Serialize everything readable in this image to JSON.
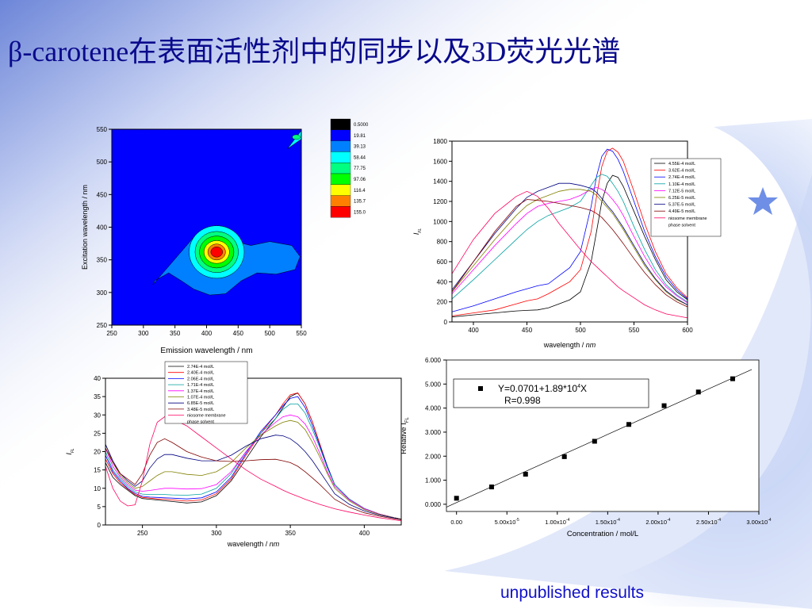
{
  "slide": {
    "title": "β-carotene在表面活性剂中的同步以及3D荧光光谱",
    "footnote": "unpublished results"
  },
  "colors": {
    "title": "#0a0a8c",
    "footnote": "#1010c8",
    "background_glow": "#c9d6f6",
    "star": "#6f8fe6"
  },
  "chart_data": [
    {
      "id": "contour-3d",
      "type": "heatmap",
      "subtype": "contour",
      "xlabel": "Emission wavelength / nm",
      "ylabel": "Excitation wavelength / nm",
      "xlim": [
        250,
        550
      ],
      "ylim": [
        250,
        550
      ],
      "xticks": [
        250,
        300,
        350,
        400,
        450,
        500,
        550
      ],
      "yticks": [
        250,
        300,
        350,
        400,
        450,
        500,
        550
      ],
      "colorbar": {
        "levels": [
          "0.5000",
          "19.81",
          "39.13",
          "58.44",
          "77.75",
          "97.06",
          "116.4",
          "135.7",
          "155.0"
        ],
        "colors": [
          "#000000",
          "#0000ff",
          "#0080ff",
          "#00ffff",
          "#00ff80",
          "#00ff00",
          "#ffff00",
          "#ff8000",
          "#ff0000"
        ]
      },
      "peak": {
        "emission": 412,
        "excitation": 365
      }
    },
    {
      "id": "synchronous-spectra",
      "type": "line",
      "xlabel": "wavelength / nm",
      "ylabel": "I_FL",
      "xlim": [
        380,
        600
      ],
      "ylim": [
        0,
        1800
      ],
      "xticks": [
        400,
        450,
        500,
        550,
        600
      ],
      "yticks": [
        0,
        200,
        400,
        600,
        800,
        1000,
        1200,
        1400,
        1600,
        1800
      ],
      "x": [
        380,
        400,
        420,
        440,
        450,
        460,
        470,
        480,
        490,
        500,
        510,
        515,
        520,
        525,
        530,
        535,
        540,
        550,
        560,
        570,
        580,
        590,
        600
      ],
      "series": [
        {
          "name": "4.55E-4 mol/L",
          "color": "#000000",
          "values": [
            50,
            70,
            90,
            110,
            115,
            120,
            140,
            180,
            220,
            300,
            600,
            900,
            1200,
            1380,
            1460,
            1440,
            1350,
            1100,
            850,
            620,
            420,
            300,
            220
          ]
        },
        {
          "name": "3.62E-4 mol/L",
          "color": "#ff0000",
          "values": [
            60,
            90,
            120,
            180,
            210,
            230,
            280,
            340,
            400,
            520,
            900,
            1250,
            1550,
            1700,
            1730,
            1690,
            1600,
            1300,
            980,
            700,
            480,
            340,
            240
          ]
        },
        {
          "name": "2.74E-4 mol/L",
          "color": "#0000ff",
          "values": [
            100,
            160,
            230,
            300,
            330,
            360,
            380,
            460,
            540,
            700,
            1150,
            1450,
            1650,
            1720,
            1700,
            1620,
            1500,
            1200,
            900,
            650,
            450,
            320,
            230
          ]
        },
        {
          "name": "1.10E-4 mol/L",
          "color": "#00a0a0",
          "values": [
            230,
            420,
            620,
            820,
            920,
            1000,
            1060,
            1100,
            1140,
            1200,
            1360,
            1440,
            1470,
            1450,
            1380,
            1300,
            1200,
            950,
            720,
            520,
            370,
            270,
            200
          ]
        },
        {
          "name": "7.12E-5 mol/L",
          "color": "#ff00ff",
          "values": [
            280,
            520,
            760,
            980,
            1080,
            1150,
            1180,
            1200,
            1220,
            1260,
            1320,
            1340,
            1320,
            1280,
            1220,
            1150,
            1060,
            850,
            650,
            480,
            350,
            260,
            190
          ]
        },
        {
          "name": "6.25E-5 mol/L",
          "color": "#808000",
          "values": [
            300,
            560,
            820,
            1060,
            1160,
            1220,
            1260,
            1300,
            1320,
            1320,
            1300,
            1260,
            1200,
            1140,
            1080,
            1000,
            920,
            740,
            560,
            420,
            300,
            220,
            170
          ]
        },
        {
          "name": "5.37E-5 mol/L",
          "color": "#000080",
          "values": [
            320,
            600,
            880,
            1130,
            1240,
            1300,
            1340,
            1380,
            1380,
            1360,
            1330,
            1290,
            1230,
            1160,
            1100,
            1020,
            940,
            760,
            580,
            430,
            310,
            230,
            170
          ]
        },
        {
          "name": "4.49E-5 mol/L",
          "color": "#800000",
          "values": [
            300,
            600,
            900,
            1150,
            1220,
            1210,
            1200,
            1180,
            1160,
            1140,
            1110,
            1080,
            1040,
            980,
            920,
            850,
            780,
            630,
            490,
            370,
            270,
            200,
            150
          ]
        },
        {
          "name": "niosome membrane phase solvent",
          "color": "#ff0060",
          "values": [
            480,
            820,
            1080,
            1250,
            1300,
            1250,
            1130,
            980,
            850,
            720,
            600,
            550,
            500,
            450,
            400,
            350,
            310,
            240,
            170,
            120,
            80,
            60,
            40
          ]
        }
      ]
    },
    {
      "id": "synchronous-spectra-low",
      "type": "line",
      "xlabel": "wavelength / nm",
      "ylabel": "I_FL",
      "xlim": [
        225,
        425
      ],
      "ylim": [
        0,
        40
      ],
      "xticks": [
        250,
        300,
        350,
        400
      ],
      "yticks": [
        0,
        5,
        10,
        15,
        20,
        25,
        30,
        35,
        40
      ],
      "x": [
        225,
        230,
        235,
        240,
        245,
        250,
        255,
        260,
        265,
        270,
        280,
        290,
        300,
        310,
        320,
        330,
        340,
        345,
        350,
        355,
        360,
        365,
        370,
        375,
        380,
        390,
        400,
        410,
        420,
        425
      ],
      "series": [
        {
          "name": "2.74E-4 mol/L",
          "color": "#000000",
          "values": [
            17,
            13,
            11,
            9.5,
            8,
            7.2,
            7,
            6.8,
            6.6,
            6.4,
            6,
            6.3,
            8,
            12,
            18,
            24,
            29,
            32,
            35,
            36,
            33,
            28,
            22,
            16,
            11,
            7,
            4.5,
            3,
            2,
            1.6
          ]
        },
        {
          "name": "2.40E-4 mol/L",
          "color": "#ff0000",
          "values": [
            18,
            14,
            11.5,
            9.8,
            8.3,
            7.5,
            7.3,
            7.1,
            7,
            6.8,
            6.5,
            6.8,
            8.5,
            12.5,
            19,
            25,
            30,
            33,
            35.5,
            36,
            33,
            28,
            22,
            16,
            11,
            7,
            4.5,
            3,
            2,
            1.6
          ]
        },
        {
          "name": "2.06E-4 mol/L",
          "color": "#0000ff",
          "values": [
            19,
            14.5,
            12,
            10,
            8.6,
            7.8,
            7.6,
            7.5,
            7.4,
            7.3,
            7.1,
            7.4,
            9,
            13,
            19.5,
            25.5,
            30,
            32.5,
            34.5,
            35,
            32,
            27,
            21.5,
            16,
            11,
            7,
            4.5,
            3,
            2,
            1.6
          ]
        },
        {
          "name": "1.71E-4 mol/L",
          "color": "#00a0a0",
          "values": [
            20,
            15,
            12.5,
            10.5,
            9,
            8.4,
            8.3,
            8.3,
            8.3,
            8.2,
            8.1,
            8.4,
            10,
            14,
            20,
            25,
            29,
            31.5,
            33,
            33,
            30.5,
            26,
            21,
            15.5,
            11,
            7,
            4.5,
            3,
            2,
            1.6
          ]
        },
        {
          "name": "1.37E-4 mol/L",
          "color": "#ff00ff",
          "values": [
            21,
            16,
            13,
            11,
            9.5,
            9.2,
            9.4,
            9.7,
            10,
            10,
            9.8,
            9.9,
            11,
            14.5,
            20,
            24.5,
            28,
            29.5,
            30,
            29.5,
            27.5,
            24,
            19.5,
            14.5,
            10.5,
            6.8,
            4.4,
            3,
            2,
            1.6
          ]
        },
        {
          "name": "1.07E-4 mol/L",
          "color": "#808000",
          "values": [
            22,
            17,
            13.5,
            11.5,
            10,
            10.5,
            12,
            13.5,
            14.5,
            14.5,
            13.8,
            13.5,
            14.5,
            17,
            21,
            24.5,
            27,
            28,
            28.5,
            28,
            26,
            22.5,
            18.5,
            14,
            10,
            6.5,
            4.2,
            2.9,
            2,
            1.6
          ]
        },
        {
          "name": "6.85E-5 mol/L",
          "color": "#000080",
          "values": [
            22,
            17.5,
            14,
            12,
            10.5,
            12,
            15.5,
            18,
            19.2,
            19.2,
            18.2,
            17.5,
            17.5,
            19,
            21.5,
            23.5,
            24.5,
            24.3,
            23.5,
            22,
            20,
            17.5,
            14.5,
            11.5,
            8.5,
            5.6,
            3.8,
            2.7,
            1.9,
            1.5
          ]
        },
        {
          "name": "3.48E-5 mol/L",
          "color": "#800000",
          "values": [
            21,
            17,
            14,
            12.5,
            11,
            14,
            19,
            22.5,
            23.5,
            22.5,
            20,
            18.5,
            17.5,
            17.3,
            17.5,
            17.8,
            17.9,
            17.5,
            17,
            16,
            14.5,
            12.8,
            11,
            9,
            7,
            4.8,
            3.3,
            2.4,
            1.7,
            1.4
          ]
        },
        {
          "name": "niosome membrane phase solvent",
          "color": "#ff0060",
          "values": [
            16,
            10,
            6.5,
            5.2,
            5.5,
            12,
            22,
            28,
            29.5,
            29,
            27,
            24,
            21,
            18,
            15,
            12.5,
            10.5,
            9.5,
            8.6,
            7.8,
            7,
            6.3,
            5.6,
            5,
            4.4,
            3.5,
            2.7,
            2,
            1.4,
            1.1
          ]
        }
      ]
    },
    {
      "id": "calibration",
      "type": "scatter",
      "xlabel": "Concentration / mol/L",
      "ylabel": "Relative I_FL",
      "xlim": [
        -1e-05,
        0.0003
      ],
      "ylim": [
        -0.3,
        6.0
      ],
      "xtick_values": [
        0,
        5e-05,
        0.0001,
        0.00015,
        0.0002,
        0.00025,
        0.0003
      ],
      "xtick_labels": [
        {
          "base": "0.00",
          "exp": ""
        },
        {
          "base": "5.00x10",
          "exp": "-5"
        },
        {
          "base": "1.00x10",
          "exp": "-4"
        },
        {
          "base": "1.50x10",
          "exp": "-4"
        },
        {
          "base": "2.00x10",
          "exp": "-4"
        },
        {
          "base": "2.50x10",
          "exp": "-4"
        },
        {
          "base": "3.00x10",
          "exp": "-4"
        }
      ],
      "ytick_values": [
        0,
        1,
        2,
        3,
        4,
        5,
        6
      ],
      "ytick_labels": [
        "0.000",
        "1.000",
        "2.000",
        "3.000",
        "4.000",
        "5.000",
        "6.000"
      ],
      "x": [
        0,
        3.48e-05,
        6.85e-05,
        0.000107,
        0.000137,
        0.000171,
        0.000206,
        0.00024,
        0.000274
      ],
      "y": [
        0.25,
        0.72,
        1.25,
        1.98,
        2.62,
        3.32,
        4.1,
        4.67,
        5.22
      ],
      "fit": {
        "intercept": 0.0701,
        "slope": 18900
      },
      "legend": {
        "equation": "Y=0.0701+1.89*10",
        "equation_exp": "4",
        "equation_tail": "X",
        "r": "R=0.998"
      }
    }
  ]
}
